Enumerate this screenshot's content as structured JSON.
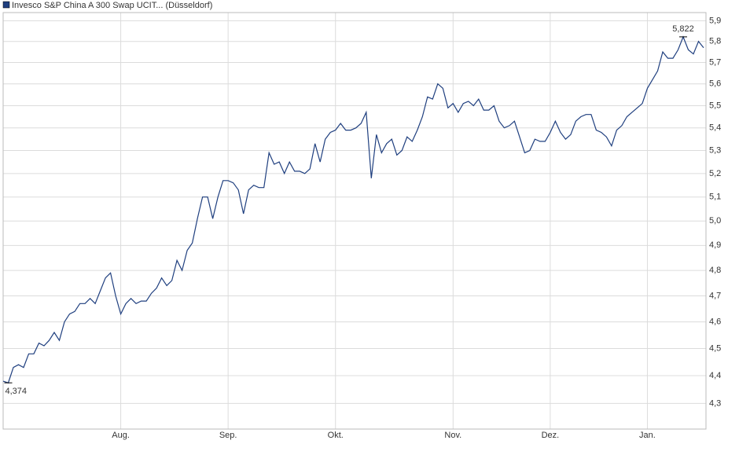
{
  "chart_data": {
    "type": "line",
    "series": [
      {
        "name": "Invesco S&P China A 300 Swap UCIT... (Düsseldorf)",
        "color": "#1f3f7f",
        "values": [
          4.38,
          4.374,
          4.43,
          4.44,
          4.43,
          4.48,
          4.48,
          4.52,
          4.51,
          4.53,
          4.56,
          4.53,
          4.6,
          4.63,
          4.64,
          4.67,
          4.67,
          4.69,
          4.67,
          4.72,
          4.77,
          4.79,
          4.7,
          4.63,
          4.67,
          4.69,
          4.67,
          4.68,
          4.68,
          4.71,
          4.73,
          4.77,
          4.74,
          4.76,
          4.84,
          4.8,
          4.88,
          4.91,
          5.01,
          5.1,
          5.1,
          5.01,
          5.1,
          5.17,
          5.17,
          5.16,
          5.13,
          5.03,
          5.13,
          5.15,
          5.14,
          5.14,
          5.29,
          5.24,
          5.25,
          5.2,
          5.25,
          5.21,
          5.21,
          5.2,
          5.22,
          5.33,
          5.25,
          5.35,
          5.38,
          5.39,
          5.42,
          5.39,
          5.39,
          5.4,
          5.42,
          5.47,
          5.18,
          5.37,
          5.29,
          5.33,
          5.35,
          5.28,
          5.3,
          5.36,
          5.34,
          5.39,
          5.45,
          5.54,
          5.53,
          5.6,
          5.58,
          5.49,
          5.51,
          5.47,
          5.51,
          5.52,
          5.5,
          5.53,
          5.48,
          5.48,
          5.5,
          5.43,
          5.4,
          5.41,
          5.43,
          5.36,
          5.29,
          5.3,
          5.35,
          5.34,
          5.34,
          5.38,
          5.43,
          5.38,
          5.35,
          5.37,
          5.43,
          5.45,
          5.46,
          5.46,
          5.39,
          5.38,
          5.36,
          5.32,
          5.39,
          5.41,
          5.45,
          5.47,
          5.49,
          5.51,
          5.58,
          5.62,
          5.66,
          5.75,
          5.72,
          5.72,
          5.76,
          5.822,
          5.76,
          5.74,
          5.8,
          5.77
        ],
        "value_labels": [
          null,
          "4,374",
          null,
          null,
          null,
          null,
          null,
          null,
          null,
          null,
          null,
          null,
          null,
          null,
          null,
          null,
          null,
          null,
          null,
          null,
          null,
          null,
          null,
          null,
          null,
          null,
          null,
          null,
          null,
          null,
          null,
          null,
          null,
          null,
          null,
          null,
          null,
          null,
          null,
          null,
          null,
          null,
          null,
          null,
          null,
          null,
          null,
          null,
          null,
          null,
          null,
          null,
          null,
          null,
          null,
          null,
          null,
          null,
          null,
          null,
          null,
          null,
          null,
          null,
          null,
          null,
          null,
          null,
          null,
          null,
          null,
          null,
          null,
          null,
          null,
          null,
          null,
          null,
          null,
          null,
          null,
          null,
          null,
          null,
          null,
          null,
          null,
          null,
          null,
          null,
          null,
          null,
          null,
          null,
          null,
          null,
          null,
          null,
          null,
          null,
          null,
          null,
          null,
          null,
          null,
          null,
          null,
          null,
          null,
          null,
          null,
          null,
          null,
          null,
          null,
          null,
          null,
          null,
          null,
          null,
          null,
          null,
          null,
          null,
          null,
          null,
          null,
          null,
          null,
          null,
          null,
          null,
          null,
          "5,822",
          null,
          null,
          null,
          null
        ]
      }
    ],
    "categories": [
      null,
      null,
      null,
      null,
      null,
      null,
      null,
      null,
      null,
      null,
      null,
      null,
      null,
      null,
      null,
      null,
      null,
      null,
      null,
      null,
      null,
      null,
      null,
      "Aug.",
      null,
      null,
      null,
      null,
      null,
      null,
      null,
      null,
      null,
      null,
      null,
      null,
      null,
      null,
      null,
      null,
      null,
      null,
      null,
      null,
      "Sep.",
      null,
      null,
      null,
      null,
      null,
      null,
      null,
      null,
      null,
      null,
      null,
      null,
      null,
      null,
      null,
      null,
      null,
      null,
      null,
      null,
      "Okt.",
      null,
      null,
      null,
      null,
      null,
      null,
      null,
      null,
      null,
      null,
      null,
      null,
      null,
      null,
      null,
      null,
      null,
      null,
      null,
      null,
      null,
      null,
      "Nov.",
      null,
      null,
      null,
      null,
      null,
      null,
      null,
      null,
      null,
      null,
      null,
      null,
      null,
      null,
      null,
      null,
      null,
      null,
      "Dez.",
      null,
      null,
      null,
      null,
      null,
      null,
      null,
      null,
      null,
      null,
      null,
      null,
      null,
      null,
      null,
      null,
      null,
      null,
      "Jan.",
      null,
      null,
      null,
      null,
      null,
      null,
      null,
      null,
      null,
      null,
      null
    ],
    "ylim": [
      4.21,
      5.94
    ],
    "log_y": true,
    "yticks": [
      {
        "value": 4.3,
        "label": "4,3"
      },
      {
        "value": 4.4,
        "label": "4,4"
      },
      {
        "value": 4.5,
        "label": "4,5"
      },
      {
        "value": 4.6,
        "label": "4,6"
      },
      {
        "value": 4.7,
        "label": "4,7"
      },
      {
        "value": 4.8,
        "label": "4,8"
      },
      {
        "value": 4.9,
        "label": "4,9"
      },
      {
        "value": 5.0,
        "label": "5,0"
      },
      {
        "value": 5.1,
        "label": "5,1"
      },
      {
        "value": 5.2,
        "label": "5,2"
      },
      {
        "value": 5.3,
        "label": "5,3"
      },
      {
        "value": 5.4,
        "label": "5,4"
      },
      {
        "value": 5.5,
        "label": "5,5"
      },
      {
        "value": 5.6,
        "label": "5,6"
      },
      {
        "value": 5.7,
        "label": "5,7"
      },
      {
        "value": 5.8,
        "label": "5,8"
      },
      {
        "value": 5.9,
        "label": "5,9"
      }
    ],
    "grid": true
  }
}
